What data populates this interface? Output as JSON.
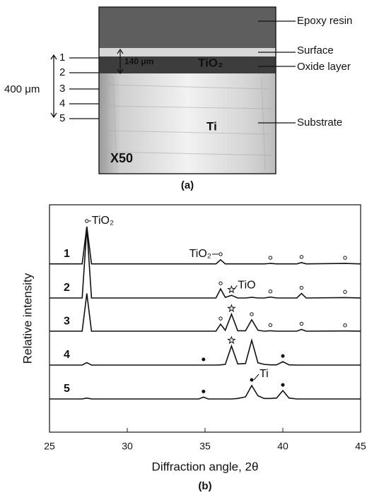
{
  "micrograph": {
    "layer_labels": [
      "Epoxy resin",
      "Surface",
      "Oxide layer",
      "Substrate"
    ],
    "depth_marks": [
      "1",
      "2",
      "3",
      "4",
      "5"
    ],
    "depth_span": "400 μm",
    "oxide_thickness": "140 μm",
    "phase_labels": [
      "TiO₂",
      "Ti"
    ],
    "magnification": "X50",
    "caption": "(a)"
  },
  "chart_data": {
    "type": "line",
    "caption": "(b)",
    "x_label": "Diffraction   angle,   2θ",
    "y_label": "Relative intensity",
    "xlim": [
      25,
      45
    ],
    "xticks": [
      25,
      30,
      35,
      40,
      45
    ],
    "ylim": [
      0,
      100
    ],
    "annotations": [
      "TiO₂",
      "TiO₂",
      "TiO",
      "Ti"
    ],
    "x": [
      25,
      27.1,
      27.4,
      27.7,
      34.6,
      34.9,
      35.2,
      35.7,
      36.0,
      36.3,
      36.7,
      37.1,
      37.6,
      38.0,
      38.4,
      38.8,
      39.2,
      39.6,
      40.0,
      40.4,
      40.9,
      41.2,
      41.5,
      44.0,
      45
    ],
    "series": [
      {
        "name": "1",
        "color": "#111111",
        "values": [
          74,
          74,
          90.4,
          74,
          74,
          74,
          74,
          74,
          75.8,
          74,
          74,
          74,
          74,
          74,
          74,
          74,
          74.2,
          74,
          74,
          74,
          74,
          74.6,
          74,
          74.2,
          74
        ]
      },
      {
        "name": "2",
        "color": "#111111",
        "values": [
          59,
          59,
          90,
          59,
          59,
          59,
          59,
          59,
          63,
          59.3,
          60.2,
          59,
          59,
          59.3,
          59,
          59,
          59.4,
          59,
          59,
          59,
          59,
          61,
          59,
          59.2,
          59
        ]
      },
      {
        "name": "3",
        "color": "#111111",
        "values": [
          44.4,
          44.4,
          61,
          44.4,
          44.4,
          44.4,
          44.4,
          44.4,
          47.5,
          44.8,
          51.9,
          44.6,
          44.6,
          49.4,
          44.8,
          44.4,
          44.6,
          44.4,
          44.4,
          44.4,
          44.4,
          45.2,
          44.4,
          44.5,
          44.4
        ]
      },
      {
        "name": "4",
        "color": "#111111",
        "values": [
          29.5,
          29.5,
          30.6,
          29.5,
          29.5,
          29.5,
          29.5,
          29.5,
          29.6,
          29.8,
          37.9,
          30,
          30.2,
          40.4,
          30.5,
          29.8,
          29.6,
          29.6,
          31,
          29.6,
          29.5,
          29.5,
          29.5,
          29.5,
          29.5
        ]
      },
      {
        "name": "5",
        "color": "#111111",
        "values": [
          14.6,
          14.6,
          15,
          14.6,
          14.6,
          15.4,
          14.6,
          14.6,
          14.6,
          14.6,
          14.6,
          14.8,
          15.5,
          20.5,
          16,
          14.8,
          14.8,
          15,
          18.3,
          15,
          14.6,
          14.6,
          14.6,
          14.6,
          14.6
        ]
      }
    ]
  }
}
